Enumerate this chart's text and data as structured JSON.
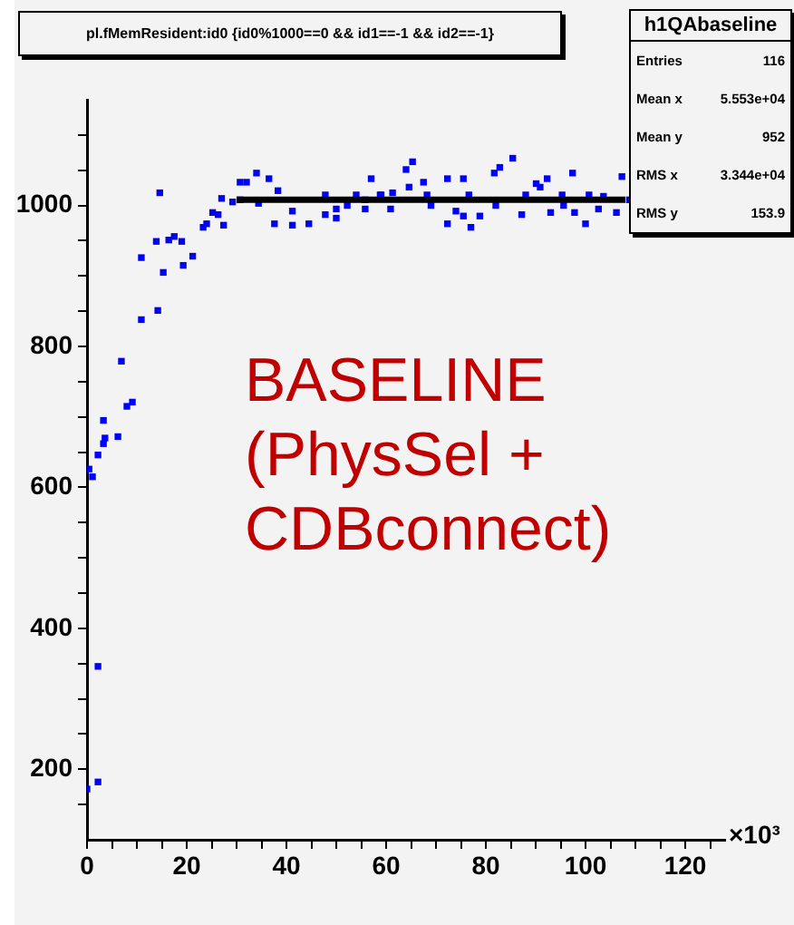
{
  "chart_data": {
    "type": "scatter",
    "title": "pl.fMemResident:id0 {id0%1000==0 && id1==-1 && id2==-1}",
    "xlabel": "×10³",
    "xlim": [
      0,
      128
    ],
    "xticks": [
      0,
      {
        "value": 5,
        "label": null
      },
      {
        "value": 10,
        "label": null
      },
      {
        "value": 15,
        "label": null
      },
      20,
      {
        "value": 25,
        "label": null
      },
      {
        "value": 30,
        "label": null
      },
      {
        "value": 35,
        "label": null
      },
      40,
      {
        "value": 45,
        "label": null
      },
      {
        "value": 50,
        "label": null
      },
      {
        "value": 55,
        "label": null
      },
      60,
      {
        "value": 65,
        "label": null
      },
      {
        "value": 70,
        "label": null
      },
      {
        "value": 75,
        "label": null
      },
      80,
      {
        "value": 85,
        "label": null
      },
      {
        "value": 90,
        "label": null
      },
      {
        "value": 95,
        "label": null
      },
      100,
      {
        "value": 105,
        "label": null
      },
      {
        "value": 110,
        "label": null
      },
      {
        "value": 115,
        "label": null
      },
      120,
      {
        "value": 125,
        "label": null
      }
    ],
    "ylim": [
      100,
      1150
    ],
    "yticks": [
      {
        "value": 150,
        "label": null
      },
      200,
      {
        "value": 250,
        "label": null
      },
      {
        "value": 300,
        "label": null
      },
      {
        "value": 350,
        "label": null
      },
      400,
      {
        "value": 450,
        "label": null
      },
      {
        "value": 500,
        "label": null
      },
      {
        "value": 550,
        "label": null
      },
      600,
      {
        "value": 650,
        "label": null
      },
      {
        "value": 700,
        "label": null
      },
      {
        "value": 750,
        "label": null
      },
      800,
      {
        "value": 850,
        "label": null
      },
      {
        "value": 900,
        "label": null
      },
      {
        "value": 950,
        "label": null
      },
      1000,
      {
        "value": 1050,
        "label": null
      },
      {
        "value": 1100,
        "label": null
      }
    ],
    "grid": false,
    "legend": false,
    "marker": "square",
    "series": [
      {
        "color": "#0000ff",
        "x": [
          0,
          2.2,
          2.2,
          0.4,
          1.1,
          2.2,
          3.3,
          3.3,
          3.6,
          6.2,
          6.9,
          8,
          9.1,
          10.9,
          10.9,
          13.9,
          14.2,
          14.6,
          15.3,
          16.4,
          17.5,
          19,
          19.3,
          21.2,
          23.3,
          24,
          25.2,
          26.3,
          27.4,
          27,
          29.2,
          30.7,
          34.4,
          37.6,
          38.3,
          41.2,
          41.2,
          44.5,
          47.8,
          47.8,
          50,
          50,
          52.2,
          54,
          55.8,
          55.8,
          58.8,
          60.9,
          30.7,
          32,
          34,
          36.5,
          57,
          59,
          61.3,
          64,
          65.3,
          64.6,
          67.5,
          68.2,
          69,
          72.3,
          72.3,
          74,
          75.5,
          75.5,
          77,
          76.6,
          78.8,
          81.7,
          82.8,
          85.4,
          82,
          87.2,
          88,
          90.1,
          90.9,
          92.3,
          93,
          95.3,
          95.6,
          97.4,
          97.8,
          100,
          100.7,
          102.6,
          103.6,
          106.2,
          107.3,
          108.8
        ],
        "values": [
          172,
          182,
          346,
          626,
          615,
          646,
          695,
          662,
          670,
          672,
          779,
          715,
          721,
          838,
          926,
          949,
          851,
          1018,
          905,
          951,
          956,
          949,
          915,
          928,
          969,
          974,
          990,
          987,
          972,
          1010,
          1005,
          1008,
          1003,
          974,
          1021,
          972,
          992,
          974,
          987,
          1015,
          995,
          982,
          1000,
          1015,
          995,
          1008,
          1015,
          995,
          1033,
          1033,
          1046,
          1038,
          1038,
          1015,
          1018,
          1051,
          1062,
          1026,
          1033,
          1015,
          1000,
          1038,
          974,
          992,
          1038,
          985,
          969,
          1015,
          985,
          1046,
          1054,
          1067,
          1000,
          987,
          1015,
          1031,
          1026,
          1038,
          990,
          1015,
          1000,
          1046,
          990,
          974,
          1015,
          995,
          1013,
          990,
          1041,
          1008
        ]
      },
      {
        "type": "line",
        "color": "#000000",
        "marker": "none",
        "x": [
          30,
          108
        ],
        "values": [
          1008,
          1008
        ]
      }
    ],
    "annotations": [
      "BASELINE (PhysSel + CDBconnect)",
      "h1QAbaseline",
      "Entries",
      "116",
      "Mean x",
      "5.553e+04",
      "Mean y",
      "952",
      "RMS x",
      "3.344e+04",
      "RMS y",
      "153.9"
    ]
  }
}
